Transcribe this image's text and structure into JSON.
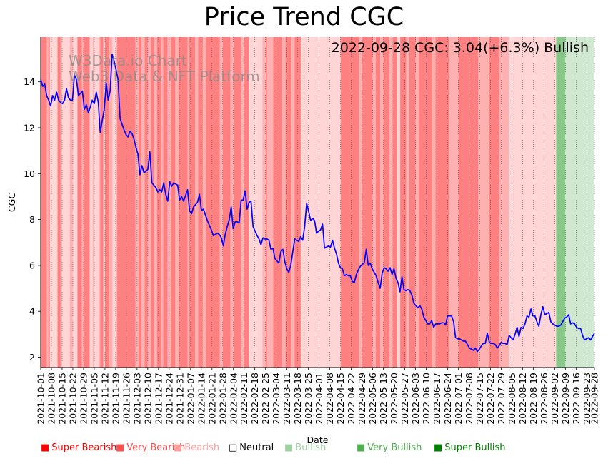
{
  "chart_data": {
    "type": "line",
    "title": "Price Trend CGC",
    "annotation": "2022-09-28 CGC: 3.04(+6.3%) Bullish",
    "watermark": [
      "W3Data.io Chart",
      "Web3 Data & NFT Platform"
    ],
    "xlabel": "Date",
    "ylabel": "CGC",
    "ylim": [
      1.55,
      15.95
    ],
    "yticks": [
      2,
      4,
      6,
      8,
      10,
      12,
      14
    ],
    "xlim": [
      "2021-10-01",
      "2022-09-28"
    ],
    "xticks": [
      "2021-10-01",
      "2021-10-08",
      "2021-10-15",
      "2021-10-22",
      "2021-10-29",
      "2021-11-05",
      "2021-11-12",
      "2021-11-19",
      "2021-11-26",
      "2021-12-03",
      "2021-12-10",
      "2021-12-17",
      "2021-12-24",
      "2021-12-31",
      "2022-01-07",
      "2022-01-14",
      "2022-01-21",
      "2022-01-28",
      "2022-02-04",
      "2022-02-11",
      "2022-02-18",
      "2022-02-25",
      "2022-03-04",
      "2022-03-11",
      "2022-03-18",
      "2022-03-25",
      "2022-04-01",
      "2022-04-08",
      "2022-04-15",
      "2022-04-22",
      "2022-04-29",
      "2022-05-06",
      "2022-05-13",
      "2022-05-20",
      "2022-05-27",
      "2022-06-03",
      "2022-06-10",
      "2022-06-17",
      "2022-06-24",
      "2022-07-01",
      "2022-07-08",
      "2022-07-15",
      "2022-07-22",
      "2022-07-29",
      "2022-08-05",
      "2022-08-12",
      "2022-08-19",
      "2022-08-26",
      "2022-09-02",
      "2022-09-09",
      "2022-09-16",
      "2022-09-23",
      "2022-09-28"
    ],
    "series": [
      {
        "name": "CGC",
        "color": "#0000ff",
        "values": [
          14.1,
          13.8,
          13.9,
          13.4,
          13.2,
          12.95,
          13.4,
          13.2,
          13.55,
          13.2,
          13.1,
          13.05,
          13.2,
          13.7,
          13.3,
          13.2,
          13.2,
          14.3,
          14.1,
          13.4,
          13.5,
          13.6,
          12.8,
          13.0,
          12.65,
          12.9,
          13.2,
          13.05,
          13.55,
          13.1,
          11.8,
          12.3,
          12.8,
          13.95,
          13.2,
          13.6,
          15.2,
          14.9,
          14.5,
          14.1,
          12.4,
          12.15,
          11.9,
          11.7,
          11.6,
          11.85,
          11.75,
          11.5,
          11.15,
          10.85,
          9.95,
          10.35,
          10.05,
          10.1,
          10.2,
          10.95,
          9.6,
          9.5,
          9.4,
          9.2,
          9.3,
          9.2,
          9.6,
          9.1,
          8.8,
          9.65,
          9.45,
          9.6,
          9.55,
          9.5,
          8.85,
          9.0,
          8.8,
          9.05,
          9.3,
          8.4,
          8.25,
          8.55,
          8.65,
          8.75,
          9.1,
          8.4,
          8.45,
          8.2,
          7.95,
          7.75,
          7.55,
          7.3,
          7.35,
          7.4,
          7.35,
          7.2,
          6.85,
          7.35,
          7.7,
          8.0,
          8.55,
          7.6,
          7.9,
          7.9,
          7.85,
          8.85,
          8.85,
          9.25,
          8.45,
          8.75,
          8.8,
          7.7,
          7.5,
          7.3,
          7.15,
          6.9,
          7.2,
          7.15,
          7.15,
          7.1,
          6.7,
          6.75,
          6.3,
          6.2,
          6.1,
          6.6,
          6.7,
          6.15,
          5.85,
          5.7,
          6.0,
          6.6,
          7.15,
          7.1,
          7.05,
          7.25,
          7.1,
          7.7,
          8.7,
          8.35,
          7.95,
          8.05,
          7.95,
          7.4,
          7.5,
          7.55,
          7.8,
          6.75,
          6.8,
          6.85,
          6.8,
          7.1,
          6.75,
          6.5,
          6.1,
          5.9,
          5.85,
          5.55,
          5.6,
          5.55,
          5.55,
          5.3,
          5.25,
          5.6,
          5.8,
          5.95,
          6.05,
          6.1,
          6.7,
          6.0,
          6.1,
          5.85,
          5.7,
          5.55,
          5.25,
          5.0,
          5.65,
          5.9,
          5.85,
          5.75,
          5.9,
          5.6,
          5.85,
          5.45,
          5.25,
          4.85,
          5.5,
          4.95,
          4.9,
          4.95,
          4.9,
          4.7,
          4.35,
          4.25,
          4.15,
          4.25,
          4.1,
          3.75,
          3.6,
          3.45,
          3.45,
          3.6,
          3.3,
          3.45,
          3.45,
          3.45,
          3.5,
          3.5,
          3.4,
          3.8,
          3.8,
          3.8,
          3.55,
          2.85,
          2.8,
          2.8,
          2.75,
          2.7,
          2.7,
          2.55,
          2.4,
          2.35,
          2.3,
          2.4,
          2.25,
          2.35,
          2.5,
          2.6,
          2.6,
          3.05,
          2.65,
          2.6,
          2.6,
          2.55,
          2.4,
          2.5,
          2.65,
          2.6,
          2.6,
          2.55,
          2.95,
          2.85,
          2.75,
          3.0,
          3.3,
          2.9,
          3.3,
          3.25,
          3.45,
          3.8,
          3.75,
          4.1,
          3.8,
          3.8,
          3.55,
          3.35,
          3.85,
          4.2,
          3.85,
          3.9,
          3.95,
          3.55,
          3.45,
          3.4,
          3.35,
          3.35,
          3.4,
          3.55,
          3.7,
          3.75,
          3.85,
          3.45,
          3.5,
          3.45,
          3.3,
          3.25,
          3.25,
          2.95,
          2.75,
          2.8,
          2.85,
          2.75,
          2.9,
          3.04
        ]
      }
    ],
    "sentiment_bands": [
      {
        "start": "2021-10-01",
        "end": "2021-10-05",
        "level": "very-bearish"
      },
      {
        "start": "2021-10-05",
        "end": "2021-10-06",
        "level": "bearish"
      },
      {
        "start": "2021-10-06",
        "end": "2021-10-07",
        "level": "very-bearish"
      },
      {
        "start": "2021-10-07",
        "end": "2021-10-12",
        "level": "neutral"
      },
      {
        "start": "2021-10-12",
        "end": "2021-10-14",
        "level": "very-bearish"
      },
      {
        "start": "2021-10-14",
        "end": "2021-10-15",
        "level": "bearish"
      },
      {
        "start": "2021-10-15",
        "end": "2021-10-20",
        "level": "neutral"
      },
      {
        "start": "2021-10-20",
        "end": "2021-10-22",
        "level": "bearish"
      },
      {
        "start": "2021-10-22",
        "end": "2021-10-25",
        "level": "neutral"
      },
      {
        "start": "2021-10-25",
        "end": "2021-10-28",
        "level": "very-bearish"
      },
      {
        "start": "2021-10-28",
        "end": "2021-10-29",
        "level": "bearish"
      },
      {
        "start": "2021-10-29",
        "end": "2021-11-02",
        "level": "very-bearish"
      },
      {
        "start": "2021-11-02",
        "end": "2021-11-04",
        "level": "neutral"
      },
      {
        "start": "2021-11-04",
        "end": "2021-11-05",
        "level": "bearish"
      },
      {
        "start": "2021-11-05",
        "end": "2021-11-08",
        "level": "neutral"
      },
      {
        "start": "2021-11-08",
        "end": "2021-11-09",
        "level": "bearish"
      },
      {
        "start": "2021-11-09",
        "end": "2021-11-11",
        "level": "very-bearish"
      },
      {
        "start": "2021-11-11",
        "end": "2021-11-12",
        "level": "neutral"
      },
      {
        "start": "2021-11-12",
        "end": "2021-11-15",
        "level": "very-bearish"
      },
      {
        "start": "2021-11-15",
        "end": "2021-11-17",
        "level": "bearish"
      },
      {
        "start": "2021-11-17",
        "end": "2021-11-19",
        "level": "neutral"
      },
      {
        "start": "2021-11-19",
        "end": "2021-11-20",
        "level": "bearish"
      },
      {
        "start": "2021-11-20",
        "end": "2021-12-02",
        "level": "very-bearish"
      },
      {
        "start": "2021-12-02",
        "end": "2021-12-04",
        "level": "bearish"
      },
      {
        "start": "2021-12-04",
        "end": "2021-12-06",
        "level": "very-bearish"
      },
      {
        "start": "2021-12-06",
        "end": "2021-12-08",
        "level": "bearish"
      },
      {
        "start": "2021-12-08",
        "end": "2021-12-10",
        "level": "very-bearish"
      },
      {
        "start": "2021-12-10",
        "end": "2021-12-12",
        "level": "bearish"
      },
      {
        "start": "2021-12-12",
        "end": "2021-12-14",
        "level": "very-bearish"
      },
      {
        "start": "2021-12-14",
        "end": "2021-12-16",
        "level": "bearish"
      },
      {
        "start": "2021-12-16",
        "end": "2021-12-19",
        "level": "very-bearish"
      },
      {
        "start": "2021-12-19",
        "end": "2021-12-20",
        "level": "bearish"
      },
      {
        "start": "2021-12-20",
        "end": "2021-12-23",
        "level": "very-bearish"
      },
      {
        "start": "2021-12-23",
        "end": "2021-12-25",
        "level": "bearish"
      },
      {
        "start": "2021-12-25",
        "end": "2021-12-28",
        "level": "very-bearish"
      },
      {
        "start": "2021-12-28",
        "end": "2021-12-30",
        "level": "bearish"
      },
      {
        "start": "2021-12-30",
        "end": "2022-01-05",
        "level": "very-bearish"
      },
      {
        "start": "2022-01-05",
        "end": "2022-01-06",
        "level": "bearish"
      },
      {
        "start": "2022-01-06",
        "end": "2022-01-10",
        "level": "very-bearish"
      },
      {
        "start": "2022-01-10",
        "end": "2022-01-12",
        "level": "bearish"
      },
      {
        "start": "2022-01-12",
        "end": "2022-01-15",
        "level": "very-bearish"
      },
      {
        "start": "2022-01-15",
        "end": "2022-01-17",
        "level": "bearish"
      },
      {
        "start": "2022-01-17",
        "end": "2022-01-26",
        "level": "very-bearish"
      },
      {
        "start": "2022-01-26",
        "end": "2022-01-28",
        "level": "bearish"
      },
      {
        "start": "2022-01-28",
        "end": "2022-02-02",
        "level": "very-bearish"
      },
      {
        "start": "2022-02-02",
        "end": "2022-02-04",
        "level": "bearish"
      },
      {
        "start": "2022-02-04",
        "end": "2022-02-09",
        "level": "very-bearish"
      },
      {
        "start": "2022-02-09",
        "end": "2022-02-11",
        "level": "bearish"
      },
      {
        "start": "2022-02-11",
        "end": "2022-02-14",
        "level": "very-bearish"
      },
      {
        "start": "2022-02-14",
        "end": "2022-02-23",
        "level": "neutral"
      },
      {
        "start": "2022-02-23",
        "end": "2022-02-25",
        "level": "bearish"
      },
      {
        "start": "2022-02-25",
        "end": "2022-02-26",
        "level": "very-bearish"
      },
      {
        "start": "2022-02-26",
        "end": "2022-03-02",
        "level": "bearish"
      },
      {
        "start": "2022-03-02",
        "end": "2022-03-08",
        "level": "very-bearish"
      },
      {
        "start": "2022-03-08",
        "end": "2022-03-10",
        "level": "bearish"
      },
      {
        "start": "2022-03-10",
        "end": "2022-03-14",
        "level": "very-bearish"
      },
      {
        "start": "2022-03-14",
        "end": "2022-03-16",
        "level": "bearish"
      },
      {
        "start": "2022-03-16",
        "end": "2022-03-20",
        "level": "very-bearish"
      },
      {
        "start": "2022-03-20",
        "end": "2022-03-25",
        "level": "neutral"
      },
      {
        "start": "2022-03-25",
        "end": "2022-04-15",
        "level": "neutral"
      },
      {
        "start": "2022-04-15",
        "end": "2022-04-27",
        "level": "very-bearish"
      },
      {
        "start": "2022-04-27",
        "end": "2022-04-29",
        "level": "bearish"
      },
      {
        "start": "2022-04-29",
        "end": "2022-05-06",
        "level": "very-bearish"
      },
      {
        "start": "2022-05-06",
        "end": "2022-05-08",
        "level": "bearish"
      },
      {
        "start": "2022-05-08",
        "end": "2022-05-11",
        "level": "very-bearish"
      },
      {
        "start": "2022-05-11",
        "end": "2022-05-13",
        "level": "bearish"
      },
      {
        "start": "2022-05-13",
        "end": "2022-05-17",
        "level": "very-bearish"
      },
      {
        "start": "2022-05-17",
        "end": "2022-05-19",
        "level": "bearish"
      },
      {
        "start": "2022-05-19",
        "end": "2022-05-22",
        "level": "very-bearish"
      },
      {
        "start": "2022-05-22",
        "end": "2022-05-24",
        "level": "neutral"
      },
      {
        "start": "2022-05-24",
        "end": "2022-05-28",
        "level": "very-bearish"
      },
      {
        "start": "2022-05-28",
        "end": "2022-05-30",
        "level": "bearish"
      },
      {
        "start": "2022-05-30",
        "end": "2022-06-03",
        "level": "very-bearish"
      },
      {
        "start": "2022-06-03",
        "end": "2022-06-05",
        "level": "bearish"
      },
      {
        "start": "2022-06-05",
        "end": "2022-06-14",
        "level": "very-bearish"
      },
      {
        "start": "2022-06-14",
        "end": "2022-06-16",
        "level": "bearish"
      },
      {
        "start": "2022-06-16",
        "end": "2022-06-25",
        "level": "very-bearish"
      },
      {
        "start": "2022-06-25",
        "end": "2022-07-01",
        "level": "bearish"
      },
      {
        "start": "2022-07-01",
        "end": "2022-07-14",
        "level": "very-bearish"
      },
      {
        "start": "2022-07-14",
        "end": "2022-07-21",
        "level": "bearish"
      },
      {
        "start": "2022-07-21",
        "end": "2022-07-28",
        "level": "very-bearish"
      },
      {
        "start": "2022-07-28",
        "end": "2022-08-03",
        "level": "bearish"
      },
      {
        "start": "2022-08-03",
        "end": "2022-09-03",
        "level": "neutral"
      },
      {
        "start": "2022-09-03",
        "end": "2022-09-09",
        "level": "very-bullish"
      },
      {
        "start": "2022-09-09",
        "end": "2022-09-28",
        "level": "bullish"
      }
    ],
    "legend_placement": "bottom",
    "grid": "x-dotted"
  },
  "legend": [
    {
      "label": "Super Bearish",
      "marker": "■",
      "color": "#ff0000"
    },
    {
      "label": "Very Bearish",
      "marker": "■",
      "color": "#ff5050"
    },
    {
      "label": "Bearish",
      "marker": "■",
      "color": "#ffa0a0"
    },
    {
      "label": "Neutral",
      "marker": "□",
      "color": "#000000"
    },
    {
      "label": "Bullish",
      "marker": "■",
      "color": "#a0d0a0"
    },
    {
      "label": "Very Bullish",
      "marker": "■",
      "color": "#50b050"
    },
    {
      "label": "Super Bullish",
      "marker": "■",
      "color": "#008000"
    }
  ],
  "band_colors": {
    "super-bearish": "#ff5050",
    "very-bearish": "#ff8080",
    "bearish": "#ffb0b0",
    "neutral": "#ffd5d5",
    "bullish": "#d0e8d0",
    "very-bullish": "#88c888",
    "super-bullish": "#40a040"
  }
}
